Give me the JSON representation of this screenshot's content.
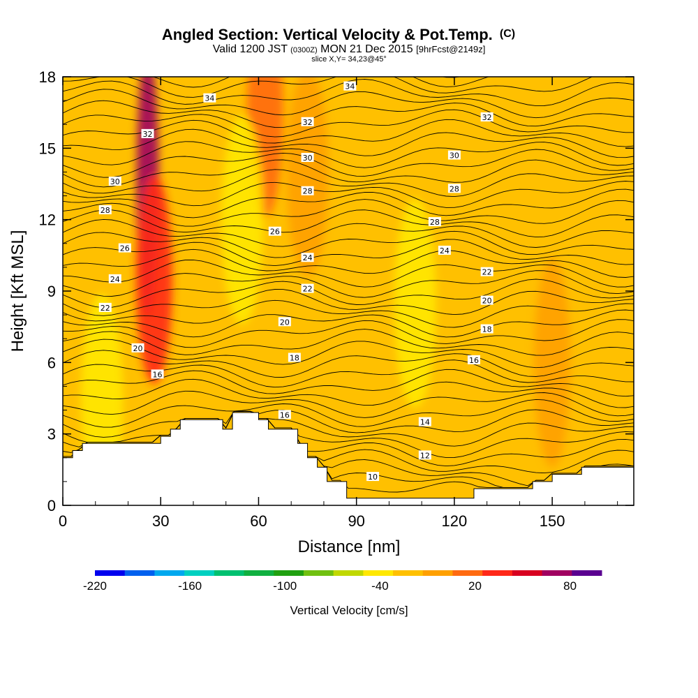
{
  "header": {
    "title_main": "Angled Section: Vertical Velocity & Pot.Temp.",
    "title_unit": "(C)",
    "valid_prefix": "Valid 1200 JST",
    "valid_utc": "(0300Z)",
    "valid_date": "MON 21 Dec 2015",
    "forecast": "[9hrFcst@2149z]",
    "slice": "slice X,Y= 34,23@45°"
  },
  "chart_data": {
    "type": "heatmap",
    "xlabel": "Distance [nm]",
    "ylabel": "Height [Kft MSL]",
    "xlim": [
      0,
      175
    ],
    "ylim": [
      0,
      18
    ],
    "xticks": [
      0,
      30,
      60,
      90,
      120,
      150
    ],
    "yticks": [
      0,
      3,
      6,
      9,
      12,
      15,
      18
    ],
    "background_level_cm_s": -10,
    "terrain_kft": {
      "x": [
        0,
        3,
        3,
        6,
        6,
        9,
        9,
        30,
        30,
        33,
        33,
        36,
        36,
        49,
        49,
        52,
        52,
        60,
        60,
        63,
        63,
        72,
        72,
        75,
        75,
        78,
        78,
        81,
        81,
        87,
        87,
        96,
        96,
        126,
        126,
        135,
        135,
        144,
        144,
        150,
        150,
        159,
        159,
        165,
        165,
        175
      ],
      "y": [
        2.0,
        2.0,
        2.3,
        2.3,
        2.6,
        2.6,
        2.6,
        2.6,
        2.9,
        2.9,
        3.2,
        3.2,
        3.6,
        3.6,
        3.2,
        3.2,
        3.9,
        3.9,
        3.6,
        3.6,
        3.2,
        3.2,
        2.6,
        2.6,
        2.0,
        2.0,
        1.6,
        1.6,
        1.0,
        1.0,
        0.3,
        0.3,
        0.3,
        0.3,
        0.7,
        0.7,
        0.7,
        0.7,
        1.0,
        1.0,
        1.3,
        1.3,
        1.6,
        1.6,
        1.6,
        1.6
      ]
    },
    "vertical_velocity_features": [
      {
        "label": "updraft core",
        "x": 26,
        "y": 13.5,
        "value_cm_s": 80
      },
      {
        "label": "updraft",
        "x": 28,
        "y": 9.5,
        "value_cm_s": 40
      },
      {
        "label": "updraft",
        "x": 62,
        "y": 16.5,
        "value_cm_s": 20
      },
      {
        "label": "updraft",
        "x": 75,
        "y": 14,
        "value_cm_s": 0
      },
      {
        "label": "updraft",
        "x": 150,
        "y": 6,
        "value_cm_s": 10
      },
      {
        "label": "downdraft",
        "x": 55,
        "y": 12,
        "value_cm_s": -40
      },
      {
        "label": "downdraft",
        "x": 12,
        "y": 4.5,
        "value_cm_s": -30
      },
      {
        "label": "downdraft",
        "x": 108,
        "y": 8.5,
        "value_cm_s": -30
      }
    ],
    "contour_labels": [
      {
        "text": "34",
        "x": 45,
        "y": 17.1
      },
      {
        "text": "34",
        "x": 88,
        "y": 17.6
      },
      {
        "text": "32",
        "x": 26,
        "y": 15.6
      },
      {
        "text": "32",
        "x": 75,
        "y": 16.1
      },
      {
        "text": "32",
        "x": 130,
        "y": 16.3
      },
      {
        "text": "30",
        "x": 16,
        "y": 13.6
      },
      {
        "text": "30",
        "x": 75,
        "y": 14.6
      },
      {
        "text": "30",
        "x": 120,
        "y": 14.7
      },
      {
        "text": "28",
        "x": 13,
        "y": 12.4
      },
      {
        "text": "28",
        "x": 75,
        "y": 13.2
      },
      {
        "text": "28",
        "x": 120,
        "y": 13.3
      },
      {
        "text": "28",
        "x": 114,
        "y": 11.9
      },
      {
        "text": "26",
        "x": 19,
        "y": 10.8
      },
      {
        "text": "26",
        "x": 65,
        "y": 11.5
      },
      {
        "text": "24",
        "x": 16,
        "y": 9.5
      },
      {
        "text": "24",
        "x": 75,
        "y": 10.4
      },
      {
        "text": "24",
        "x": 117,
        "y": 10.7
      },
      {
        "text": "22",
        "x": 13,
        "y": 8.3
      },
      {
        "text": "22",
        "x": 75,
        "y": 9.1
      },
      {
        "text": "22",
        "x": 130,
        "y": 9.8
      },
      {
        "text": "20",
        "x": 23,
        "y": 6.6
      },
      {
        "text": "20",
        "x": 68,
        "y": 7.7
      },
      {
        "text": "20",
        "x": 130,
        "y": 8.6
      },
      {
        "text": "18",
        "x": 71,
        "y": 6.2
      },
      {
        "text": "18",
        "x": 130,
        "y": 7.4
      },
      {
        "text": "16",
        "x": 29,
        "y": 5.5
      },
      {
        "text": "16",
        "x": 68,
        "y": 3.8
      },
      {
        "text": "16",
        "x": 126,
        "y": 6.1
      },
      {
        "text": "14",
        "x": 111,
        "y": 3.5
      },
      {
        "text": "12",
        "x": 111,
        "y": 2.1
      },
      {
        "text": "10",
        "x": 95,
        "y": 1.2
      }
    ],
    "colorbar": {
      "label": "Vertical Velocity [cm/s]",
      "levels": [
        -220,
        -200,
        -180,
        -160,
        -140,
        -120,
        -100,
        -80,
        -60,
        -40,
        -20,
        0,
        20,
        40,
        60,
        80,
        100
      ],
      "colors": [
        "#0000ee",
        "#0060ee",
        "#00a8ee",
        "#00d0c0",
        "#00c070",
        "#10b040",
        "#20a010",
        "#70c010",
        "#c0d800",
        "#ffe800",
        "#ffc000",
        "#ffa000",
        "#ff6a10",
        "#ff2818",
        "#d80020",
        "#a00060",
        "#5a0090"
      ],
      "tick_labels": [
        "-220",
        "-160",
        "-100",
        "-40",
        "20",
        "80"
      ],
      "tick_values": [
        -220,
        -160,
        -100,
        -40,
        20,
        80
      ]
    }
  }
}
